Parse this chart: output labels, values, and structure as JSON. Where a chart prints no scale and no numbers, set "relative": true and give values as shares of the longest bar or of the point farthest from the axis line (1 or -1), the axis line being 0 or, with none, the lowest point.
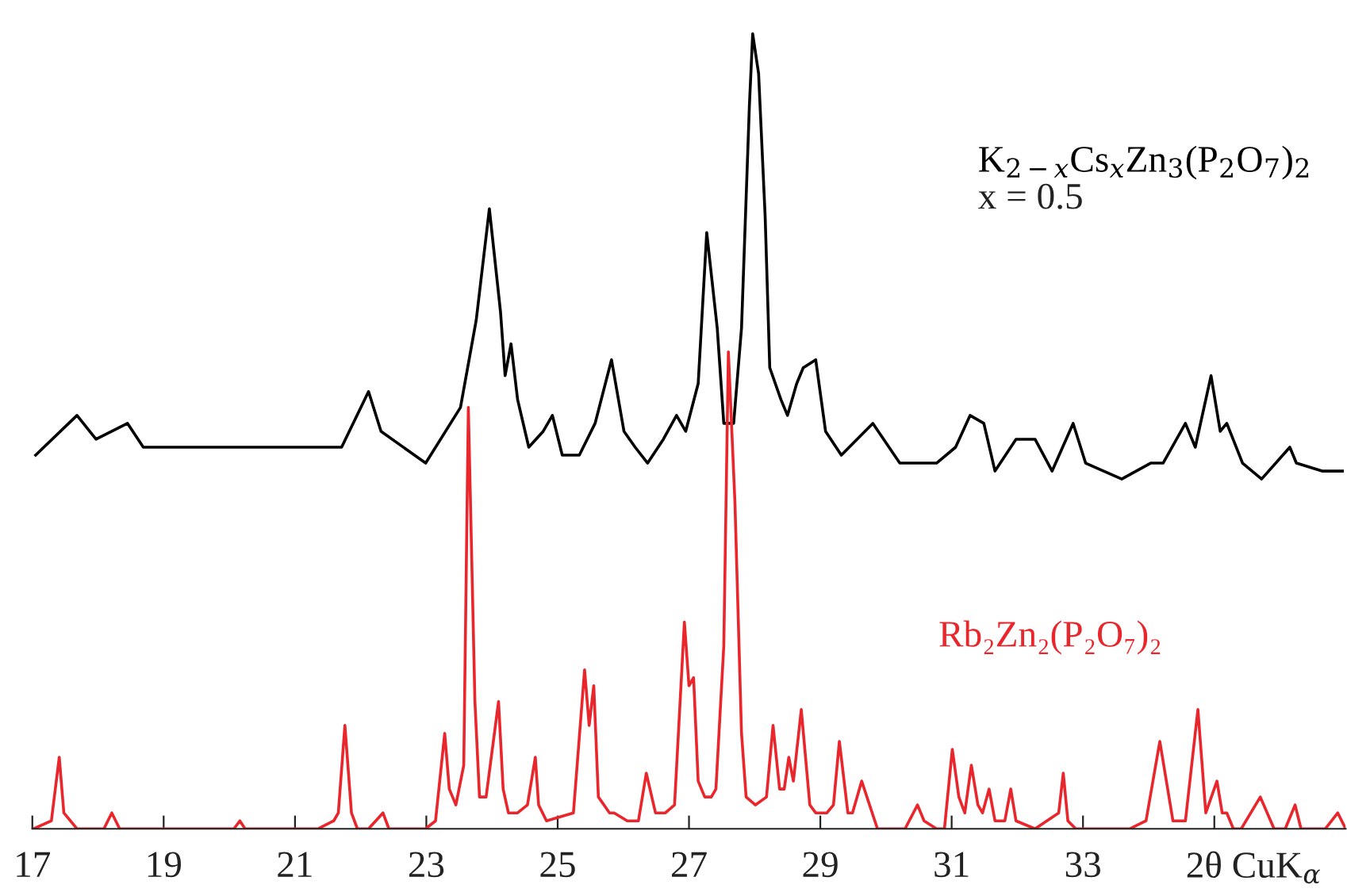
{
  "chart_data": {
    "type": "line",
    "relative": true,
    "xlabel": "2θ CuK$_{α}$",
    "xlim": [
      17,
      37
    ],
    "xticks": [
      17,
      19,
      21,
      23,
      25,
      27,
      29,
      31,
      33,
      {
        "value": 35,
        "label": null
      }
    ],
    "legend": false,
    "grid": false,
    "marker": "none",
    "line_style": "solid",
    "annotations": [
      "x = 0.5"
    ],
    "series": [
      {
        "name": "K$_{2−x}$Cs$_{x}$Zn$_{3}$(P$_{2}$O$_{7}$)$_{2}$",
        "color": "#000000",
        "x": [
          17.05,
          17.68,
          17.97,
          18.45,
          18.69,
          19.66,
          20.62,
          21.71,
          22.12,
          22.31,
          22.99,
          23.52,
          23.76,
          23.96,
          24.13,
          24.2,
          24.29,
          24.39,
          24.56,
          24.78,
          24.92,
          25.07,
          25.33,
          25.57,
          25.82,
          26.01,
          26.18,
          26.37,
          26.61,
          26.81,
          26.95,
          27.14,
          27.27,
          27.43,
          27.53,
          27.68,
          27.8,
          27.92,
          27.97,
          28.06,
          28.16,
          28.23,
          28.4,
          28.5,
          28.64,
          28.74,
          28.93,
          29.08,
          29.32,
          29.56,
          29.8,
          30.21,
          30.77,
          31.06,
          31.28,
          31.49,
          31.66,
          31.98,
          32.27,
          32.53,
          32.85,
          33.04,
          33.59,
          34.03,
          34.22,
          34.56,
          34.71,
          34.87,
          34.95,
          35.09,
          35.19,
          35.43,
          35.72,
          36.15,
          36.25,
          36.64,
          36.95
        ],
        "values": [
          0.47,
          0.52,
          0.49,
          0.51,
          0.48,
          0.48,
          0.48,
          0.48,
          0.55,
          0.5,
          0.46,
          0.53,
          0.64,
          0.78,
          0.65,
          0.57,
          0.61,
          0.54,
          0.48,
          0.5,
          0.52,
          0.47,
          0.47,
          0.51,
          0.59,
          0.5,
          0.48,
          0.46,
          0.49,
          0.52,
          0.5,
          0.56,
          0.75,
          0.63,
          0.51,
          0.51,
          0.63,
          0.91,
          1.0,
          0.95,
          0.77,
          0.58,
          0.54,
          0.52,
          0.56,
          0.58,
          0.59,
          0.5,
          0.47,
          0.49,
          0.51,
          0.46,
          0.46,
          0.48,
          0.52,
          0.51,
          0.45,
          0.49,
          0.49,
          0.45,
          0.51,
          0.46,
          0.44,
          0.46,
          0.46,
          0.51,
          0.48,
          0.54,
          0.57,
          0.5,
          0.51,
          0.46,
          0.44,
          0.48,
          0.46,
          0.45,
          0.45
        ]
      },
      {
        "name": "Rb₂Zn₂(P₂O₇)₂",
        "color": "#e8262b",
        "x": [
          17.02,
          17.29,
          17.41,
          17.48,
          17.68,
          18.09,
          18.21,
          18.33,
          18.57,
          18.69,
          18.88,
          20.07,
          20.16,
          20.24,
          21.35,
          21.59,
          21.66,
          21.76,
          21.86,
          21.95,
          22.12,
          22.34,
          22.43,
          22.72,
          22.99,
          23.14,
          23.28,
          23.35,
          23.45,
          23.57,
          23.64,
          23.74,
          23.81,
          23.91,
          24.1,
          24.17,
          24.25,
          24.39,
          24.54,
          24.66,
          24.71,
          24.83,
          25.24,
          25.41,
          25.48,
          25.55,
          25.62,
          25.79,
          25.86,
          26.06,
          26.23,
          26.35,
          26.49,
          26.64,
          26.78,
          26.93,
          27.0,
          27.07,
          27.14,
          27.24,
          27.34,
          27.41,
          27.53,
          27.6,
          27.7,
          27.8,
          27.87,
          28.01,
          28.18,
          28.28,
          28.38,
          28.45,
          28.52,
          28.59,
          28.71,
          28.84,
          28.93,
          29.1,
          29.2,
          29.29,
          29.42,
          29.49,
          29.63,
          29.83,
          29.87,
          30.29,
          30.48,
          30.58,
          30.77,
          30.89,
          31.01,
          31.11,
          31.2,
          31.3,
          31.4,
          31.47,
          31.57,
          31.66,
          31.81,
          31.9,
          31.98,
          32.27,
          32.63,
          32.7,
          32.77,
          32.89,
          33.71,
          33.96,
          34.17,
          34.37,
          34.56,
          34.75,
          34.87,
          35.04,
          35.12,
          35.19,
          35.29,
          35.41,
          35.7,
          35.91,
          36.08,
          36.23,
          36.32,
          36.49,
          36.69,
          36.88,
          37.0
        ],
        "values": [
          0,
          0.01,
          0.09,
          0.02,
          0,
          0,
          0.02,
          0,
          0,
          0,
          0,
          0,
          0.01,
          0,
          0,
          0.01,
          0.02,
          0.13,
          0.02,
          0,
          0,
          0.02,
          0,
          0,
          0,
          0.01,
          0.12,
          0.05,
          0.03,
          0.08,
          0.53,
          0.16,
          0.04,
          0.04,
          0.16,
          0.05,
          0.02,
          0.02,
          0.03,
          0.09,
          0.03,
          0.01,
          0.02,
          0.2,
          0.13,
          0.18,
          0.04,
          0.02,
          0.02,
          0.01,
          0.01,
          0.07,
          0.02,
          0.02,
          0.03,
          0.26,
          0.18,
          0.19,
          0.06,
          0.04,
          0.04,
          0.05,
          0.23,
          0.6,
          0.41,
          0.12,
          0.04,
          0.03,
          0.04,
          0.13,
          0.05,
          0.05,
          0.09,
          0.06,
          0.15,
          0.03,
          0.02,
          0.02,
          0.03,
          0.11,
          0.02,
          0.02,
          0.06,
          0.01,
          0,
          0,
          0.03,
          0.01,
          0,
          0,
          0.1,
          0.04,
          0.02,
          0.08,
          0.03,
          0.02,
          0.05,
          0.01,
          0.01,
          0.05,
          0.01,
          0,
          0.02,
          0.07,
          0.01,
          0,
          0,
          0.01,
          0.11,
          0.01,
          0.01,
          0.15,
          0.02,
          0.06,
          0.02,
          0.02,
          0,
          0,
          0.04,
          0,
          0,
          0.03,
          0,
          0,
          0,
          0.02,
          0
        ]
      }
    ]
  }
}
